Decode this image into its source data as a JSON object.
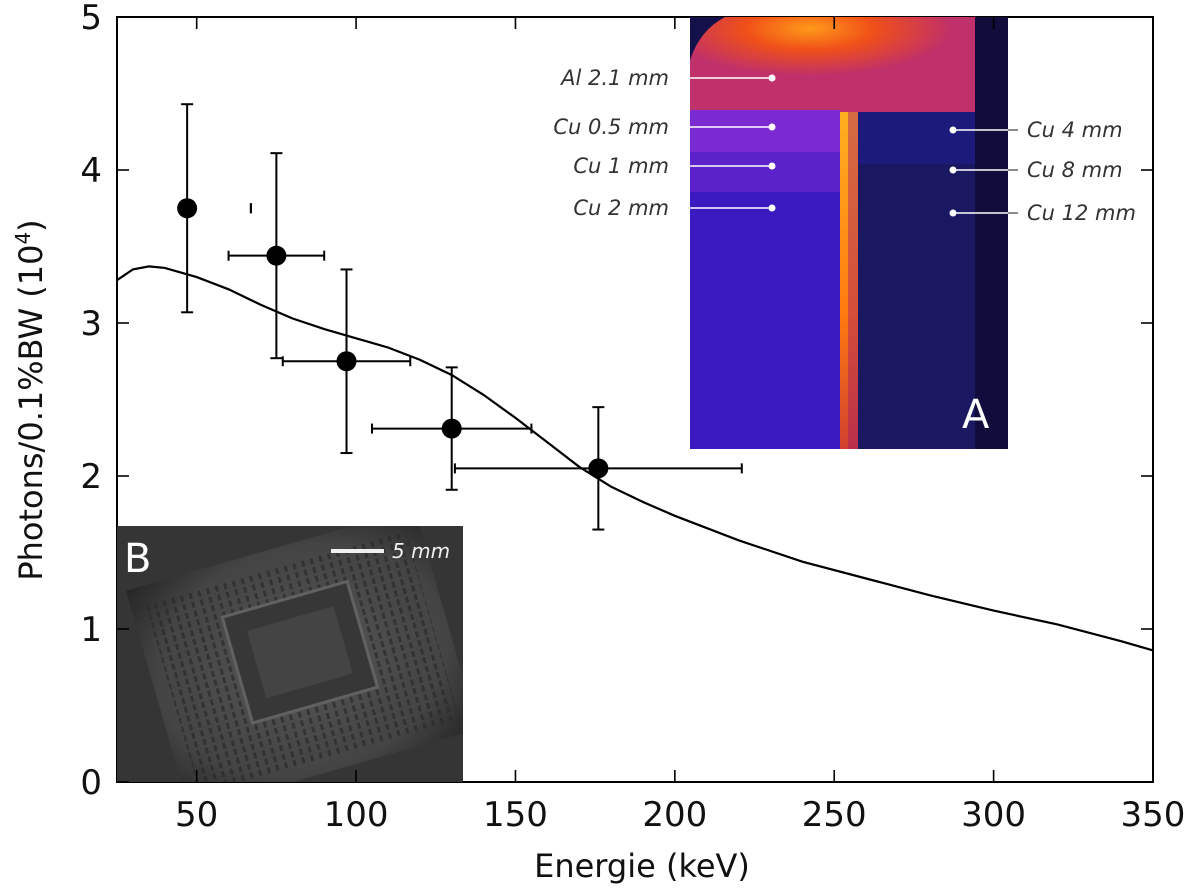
{
  "chart_data": {
    "type": "scatter",
    "xlabel": "Energie (keV)",
    "ylabel": "Photons/0.1%BW (10",
    "ylabel_superscript": "4",
    "ylabel_suffix": ")",
    "xlim": [
      25,
      350
    ],
    "ylim": [
      0,
      5
    ],
    "x_ticks": [
      50,
      100,
      150,
      200,
      250,
      300,
      350
    ],
    "y_ticks": [
      0,
      1,
      2,
      3,
      4,
      5
    ],
    "grid": false,
    "series": [
      {
        "kind": "errorbar-points",
        "x": [
          47,
          75,
          97,
          130,
          176
        ],
        "y": [
          3.75,
          3.44,
          2.75,
          2.31,
          2.05
        ],
        "x_err_low": [
          67,
          60,
          77,
          105,
          131
        ],
        "x_err_high": [
          67,
          90,
          117,
          155,
          221
        ],
        "y_err_low": [
          3.07,
          2.77,
          2.15,
          1.91,
          1.65
        ],
        "y_err_high": [
          4.43,
          4.11,
          3.35,
          2.71,
          2.45
        ]
      },
      {
        "kind": "curve",
        "x": [
          25,
          30,
          35,
          40,
          50,
          60,
          70,
          80,
          90,
          100,
          110,
          120,
          130,
          140,
          150,
          160,
          170,
          180,
          190,
          200,
          220,
          240,
          260,
          280,
          300,
          320,
          340,
          350
        ],
        "y": [
          3.28,
          3.35,
          3.37,
          3.36,
          3.3,
          3.22,
          3.12,
          3.03,
          2.96,
          2.9,
          2.84,
          2.76,
          2.66,
          2.53,
          2.38,
          2.22,
          2.06,
          1.93,
          1.83,
          1.74,
          1.58,
          1.44,
          1.33,
          1.22,
          1.12,
          1.03,
          0.92,
          0.86
        ]
      }
    ],
    "inset_a": {
      "label": "A",
      "annotations_left": [
        "Al 2.1 mm",
        "Cu 0.5 mm",
        "Cu 1 mm",
        "Cu 2 mm"
      ],
      "annotations_right": [
        "Cu 4 mm",
        "Cu 8 mm",
        "Cu 12 mm"
      ]
    },
    "inset_b": {
      "label": "B",
      "scale_bar_label": "5 mm"
    }
  }
}
